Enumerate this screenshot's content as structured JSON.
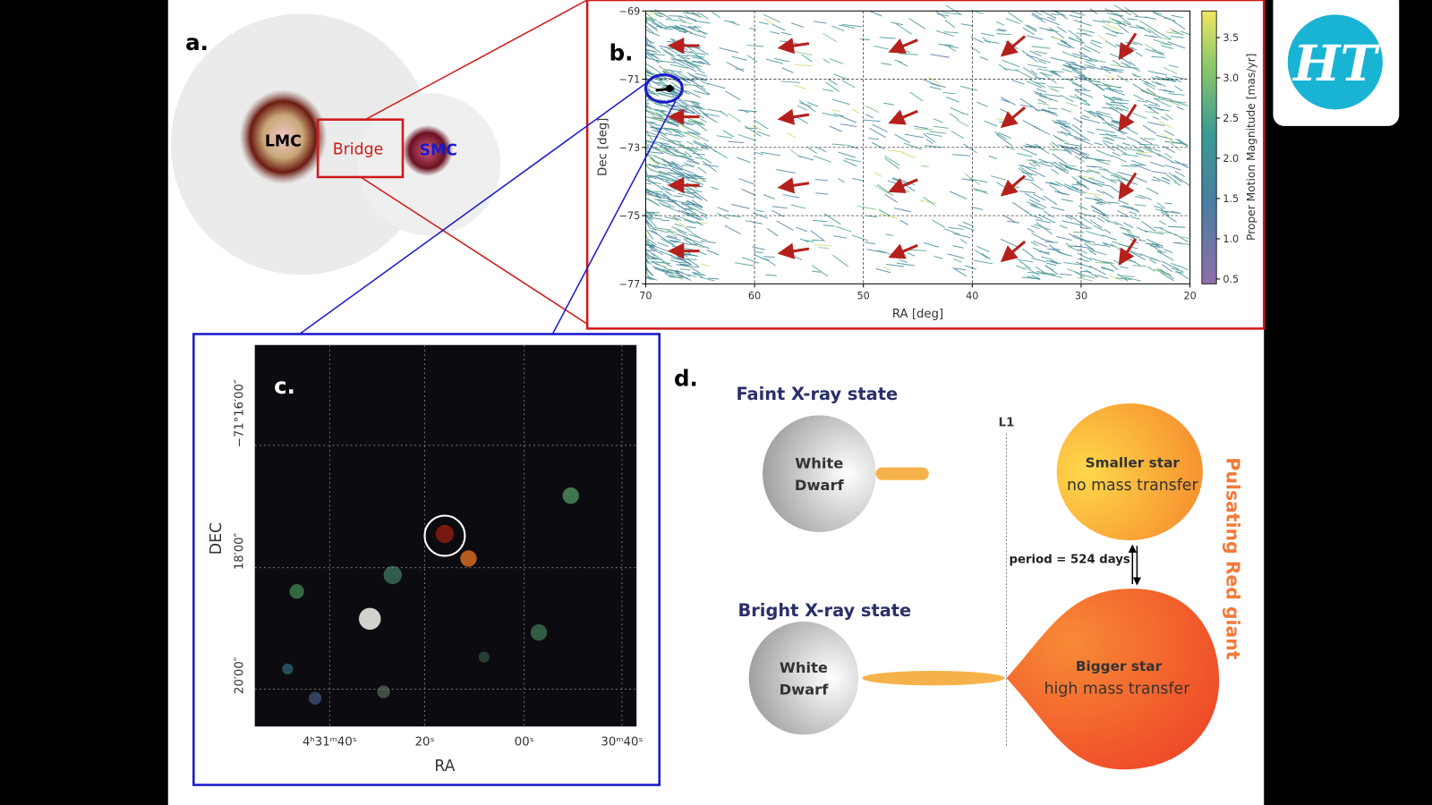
{
  "panel_a": {
    "label": "a.",
    "lmc": "LMC",
    "bridge": "Bridge",
    "smc": "SMC"
  },
  "panel_b": {
    "label": "b.",
    "x_label": "RA [deg]",
    "y_label": "Dec [deg]",
    "colorbar_label": "Proper Motion Magnitude [mas/yr]",
    "xlim": [
      70,
      20
    ],
    "ylim": [
      -77,
      -69
    ],
    "xticks": [
      70,
      60,
      50,
      40,
      30,
      20
    ],
    "yticks": [
      {
        "value": -69,
        "label": "−69"
      },
      {
        "value": -71,
        "label": "−71"
      },
      {
        "value": -73,
        "label": "−73"
      },
      {
        "value": -75,
        "label": "−75"
      },
      {
        "value": -77,
        "label": "−77"
      }
    ],
    "clim": [
      0.44,
      3.83
    ],
    "cticks": [
      0.5,
      {
        "value": 1,
        "label": "1.0"
      },
      1.5,
      {
        "value": 2,
        "label": "2.0"
      },
      2.5,
      {
        "value": 3,
        "label": "3.0"
      },
      3.5
    ]
  },
  "panel_c": {
    "label": "c.",
    "x_label": "RA",
    "y_label": "DEC",
    "xticks": [
      "4ʰ31ᵐ40ˢ",
      "20ˢ",
      "00ˢ",
      "30ᵐ40ˢ"
    ],
    "yticks": [
      "−71°16′00″",
      "18′00″",
      "20′00″"
    ]
  },
  "panel_d": {
    "label": "d.",
    "faint_state": "Faint X-ray state",
    "bright_state": "Bright X-ray state",
    "white_dwarf_top": [
      "White",
      "Dwarf"
    ],
    "white_dwarf_bottom": [
      "White",
      "Dwarf"
    ],
    "l1": "L1",
    "smaller_star": "Smaller star",
    "smaller_note": "no mass transfer",
    "bigger_star": "Bigger star",
    "bigger_note": "high mass transfer",
    "period": "period =  524 days",
    "red_giant": "Pulsating Red giant"
  },
  "logo": "HT"
}
